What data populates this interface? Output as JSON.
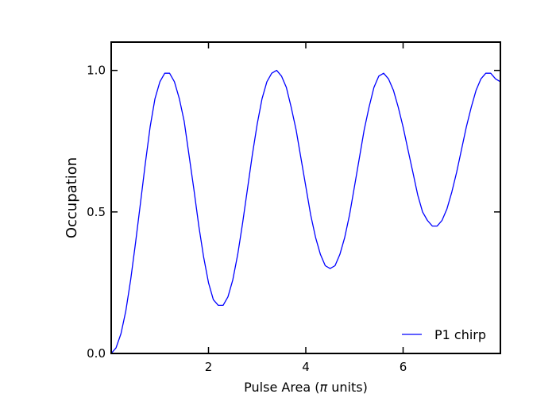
{
  "chart_data": {
    "type": "line",
    "title": "",
    "xlabel_prefix": "Pulse Area (",
    "xlabel_symbol": "π",
    "xlabel_suffix": " units)",
    "ylabel": "Occupation",
    "xlim": [
      0,
      8
    ],
    "ylim": [
      0,
      1.1
    ],
    "xticks": [
      2,
      4,
      6
    ],
    "xtick_labels": [
      "2",
      "4",
      "6"
    ],
    "yticks": [
      0,
      0.5,
      1
    ],
    "ytick_labels": [
      "0.0",
      "0.5",
      "1.0"
    ],
    "grid": false,
    "legend_position": "bottom-right",
    "series": [
      {
        "name": "P1 chirp",
        "color": "#0000ff",
        "x": [
          0.0,
          0.1,
          0.2,
          0.3,
          0.4,
          0.5,
          0.6,
          0.7,
          0.8,
          0.9,
          1.0,
          1.1,
          1.2,
          1.3,
          1.4,
          1.5,
          1.6,
          1.7,
          1.8,
          1.9,
          2.0,
          2.1,
          2.2,
          2.3,
          2.4,
          2.5,
          2.6,
          2.7,
          2.8,
          2.9,
          3.0,
          3.1,
          3.2,
          3.3,
          3.4,
          3.5,
          3.6,
          3.7,
          3.8,
          3.9,
          4.0,
          4.1,
          4.2,
          4.3,
          4.4,
          4.5,
          4.6,
          4.7,
          4.8,
          4.9,
          5.0,
          5.1,
          5.2,
          5.3,
          5.4,
          5.5,
          5.6,
          5.7,
          5.8,
          5.9,
          6.0,
          6.1,
          6.2,
          6.3,
          6.4,
          6.5,
          6.6,
          6.7,
          6.8,
          6.9,
          7.0,
          7.1,
          7.2,
          7.3,
          7.4,
          7.5,
          7.6,
          7.7,
          7.8,
          7.9,
          8.0
        ],
        "y": [
          0.0,
          0.02,
          0.07,
          0.15,
          0.26,
          0.39,
          0.53,
          0.67,
          0.8,
          0.9,
          0.96,
          0.99,
          0.99,
          0.96,
          0.9,
          0.82,
          0.7,
          0.58,
          0.45,
          0.34,
          0.25,
          0.19,
          0.17,
          0.17,
          0.2,
          0.26,
          0.35,
          0.46,
          0.58,
          0.7,
          0.81,
          0.9,
          0.96,
          0.99,
          1.0,
          0.98,
          0.94,
          0.87,
          0.79,
          0.69,
          0.59,
          0.49,
          0.41,
          0.35,
          0.31,
          0.3,
          0.31,
          0.35,
          0.41,
          0.49,
          0.59,
          0.69,
          0.79,
          0.87,
          0.94,
          0.98,
          0.99,
          0.97,
          0.93,
          0.87,
          0.8,
          0.72,
          0.64,
          0.56,
          0.5,
          0.47,
          0.45,
          0.45,
          0.47,
          0.51,
          0.57,
          0.64,
          0.72,
          0.8,
          0.87,
          0.93,
          0.97,
          0.99,
          0.99,
          0.97,
          0.96
        ]
      }
    ]
  }
}
